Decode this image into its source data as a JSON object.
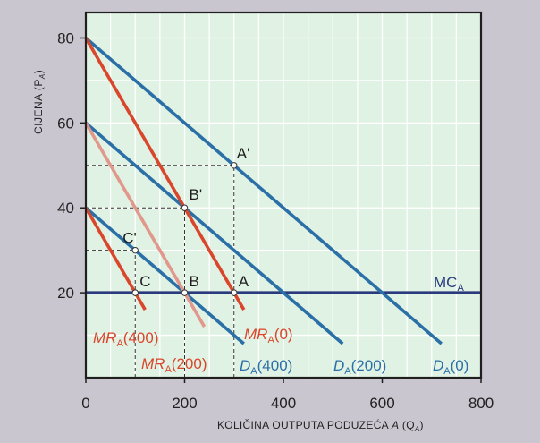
{
  "chart_data": {
    "type": "line",
    "ylabel_main": "CIJENA (P",
    "ylabel_sub": "A",
    "ylabel_close": ")",
    "xlabel_main": "KOLIČINA OUTPUTA PODUZEĆA ",
    "xlabel_var": "A",
    "xlabel_q": " (Q",
    "xlabel_sub": "A",
    "xlabel_close": ")",
    "xlim": [
      0,
      800
    ],
    "ylim": [
      0,
      86
    ],
    "x_ticks": [
      "0",
      "200",
      "400",
      "600",
      "800"
    ],
    "y_ticks": [
      "20",
      "40",
      "60",
      "80"
    ],
    "grid": true,
    "colors": {
      "background": "#c9c6cf",
      "plot_bg": "#e0f2e3",
      "grid": "#ffffff",
      "demand": "#2b6fa7",
      "marginal_revenue": "#d9462c",
      "marginal_revenue_light": "#e1978c",
      "marginal_cost": "#2b3a7c",
      "guide": "#333333",
      "frame": "#1f1f1f"
    },
    "series": [
      {
        "name": "D",
        "sub": "A",
        "suffix": "(0)",
        "kind": "demand",
        "x": [
          0,
          720
        ],
        "y": [
          80,
          8
        ]
      },
      {
        "name": "D",
        "sub": "A",
        "suffix": "(200)",
        "kind": "demand",
        "x": [
          0,
          520
        ],
        "y": [
          60,
          8
        ]
      },
      {
        "name": "D",
        "sub": "A",
        "suffix": "(400)",
        "kind": "demand",
        "x": [
          0,
          320
        ],
        "y": [
          40,
          8
        ]
      },
      {
        "name": "MR",
        "sub": "A",
        "suffix": "(0)",
        "kind": "marginal_revenue",
        "x": [
          0,
          320
        ],
        "y": [
          80,
          16
        ]
      },
      {
        "name": "MR",
        "sub": "A",
        "suffix": "(200)",
        "kind": "marginal_revenue_light",
        "x": [
          0,
          240
        ],
        "y": [
          60,
          12
        ]
      },
      {
        "name": "MR",
        "sub": "A",
        "suffix": "(400)",
        "kind": "marginal_revenue",
        "x": [
          0,
          120
        ],
        "y": [
          40,
          16
        ]
      },
      {
        "name": "MC",
        "sub": "A",
        "suffix": "",
        "kind": "marginal_cost",
        "x": [
          0,
          800
        ],
        "y": [
          20,
          20
        ]
      }
    ],
    "points": [
      {
        "label": "A",
        "x": 300,
        "y": 20
      },
      {
        "label": "B",
        "x": 200,
        "y": 20
      },
      {
        "label": "C",
        "x": 100,
        "y": 20
      },
      {
        "label": "A'",
        "x": 300,
        "y": 50
      },
      {
        "label": "B'",
        "x": 200,
        "y": 40
      },
      {
        "label": "C'",
        "x": 100,
        "y": 30
      }
    ],
    "guides": [
      {
        "x": [
          0,
          300
        ],
        "y": [
          50,
          50
        ]
      },
      {
        "x": [
          300,
          300
        ],
        "y": [
          0,
          50
        ]
      },
      {
        "x": [
          0,
          200
        ],
        "y": [
          40,
          40
        ]
      },
      {
        "x": [
          200,
          200
        ],
        "y": [
          0,
          40
        ]
      },
      {
        "x": [
          0,
          100
        ],
        "y": [
          30,
          30
        ]
      },
      {
        "x": [
          100,
          100
        ],
        "y": [
          0,
          30
        ]
      }
    ]
  }
}
